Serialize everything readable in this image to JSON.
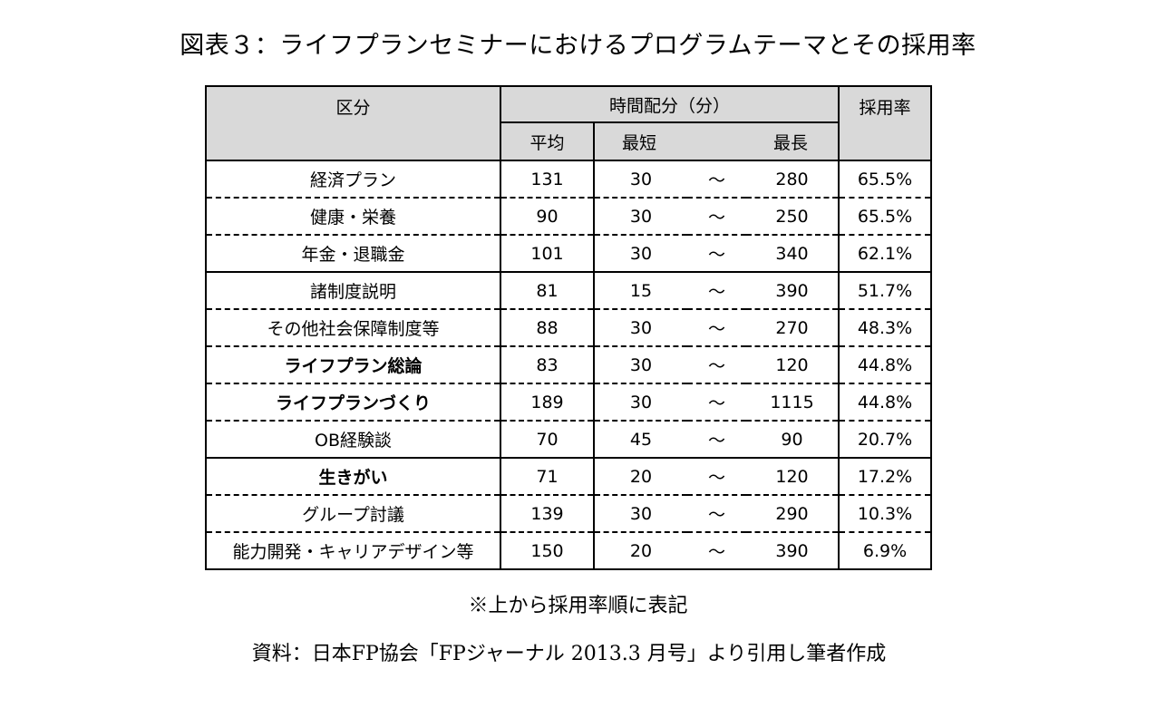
{
  "title": "図表３：ライフプランセミナーにおけるプログラムテーマとその採用率",
  "table": {
    "headers": {
      "category": "区分",
      "time": "時間配分（分）",
      "avg": "平均",
      "min": "最短",
      "max": "最長",
      "rate": "採用率"
    },
    "rows": [
      {
        "category": "経済プラン",
        "avg": "131",
        "min": "30",
        "sep": "～",
        "max": "280",
        "rate": "65.5%",
        "bold": false
      },
      {
        "category": "健康・栄養",
        "avg": "90",
        "min": "30",
        "sep": "～",
        "max": "250",
        "rate": "65.5%",
        "bold": false
      },
      {
        "category": "年金・退職金",
        "avg": "101",
        "min": "30",
        "sep": "～",
        "max": "340",
        "rate": "62.1%",
        "bold": false
      },
      {
        "category": "諸制度説明",
        "avg": "81",
        "min": "15",
        "sep": "～",
        "max": "390",
        "rate": "51.7%",
        "bold": false
      },
      {
        "category": "その他社会保障制度等",
        "avg": "88",
        "min": "30",
        "sep": "～",
        "max": "270",
        "rate": "48.3%",
        "bold": false
      },
      {
        "category": "ライフプラン総論",
        "avg": "83",
        "min": "30",
        "sep": "～",
        "max": "120",
        "rate": "44.8%",
        "bold": true
      },
      {
        "category": "ライフプランづくり",
        "avg": "189",
        "min": "30",
        "sep": "～",
        "max": "1115",
        "rate": "44.8%",
        "bold": true
      },
      {
        "category": "OB経験談",
        "avg": "70",
        "min": "45",
        "sep": "～",
        "max": "90",
        "rate": "20.7%",
        "bold": false
      },
      {
        "category": "生きがい",
        "avg": "71",
        "min": "20",
        "sep": "～",
        "max": "120",
        "rate": "17.2%",
        "bold": true
      },
      {
        "category": "グループ討議",
        "avg": "139",
        "min": "30",
        "sep": "～",
        "max": "290",
        "rate": "10.3%",
        "bold": false
      },
      {
        "category": "能力開発・キャリアデザイン等",
        "avg": "150",
        "min": "20",
        "sep": "～",
        "max": "390",
        "rate": "6.9%",
        "bold": false
      }
    ]
  },
  "note": "※上から採用率順に表記",
  "source": "資料：日本FP協会「FPジャーナル 2013.3 月号」より引用し筆者作成"
}
